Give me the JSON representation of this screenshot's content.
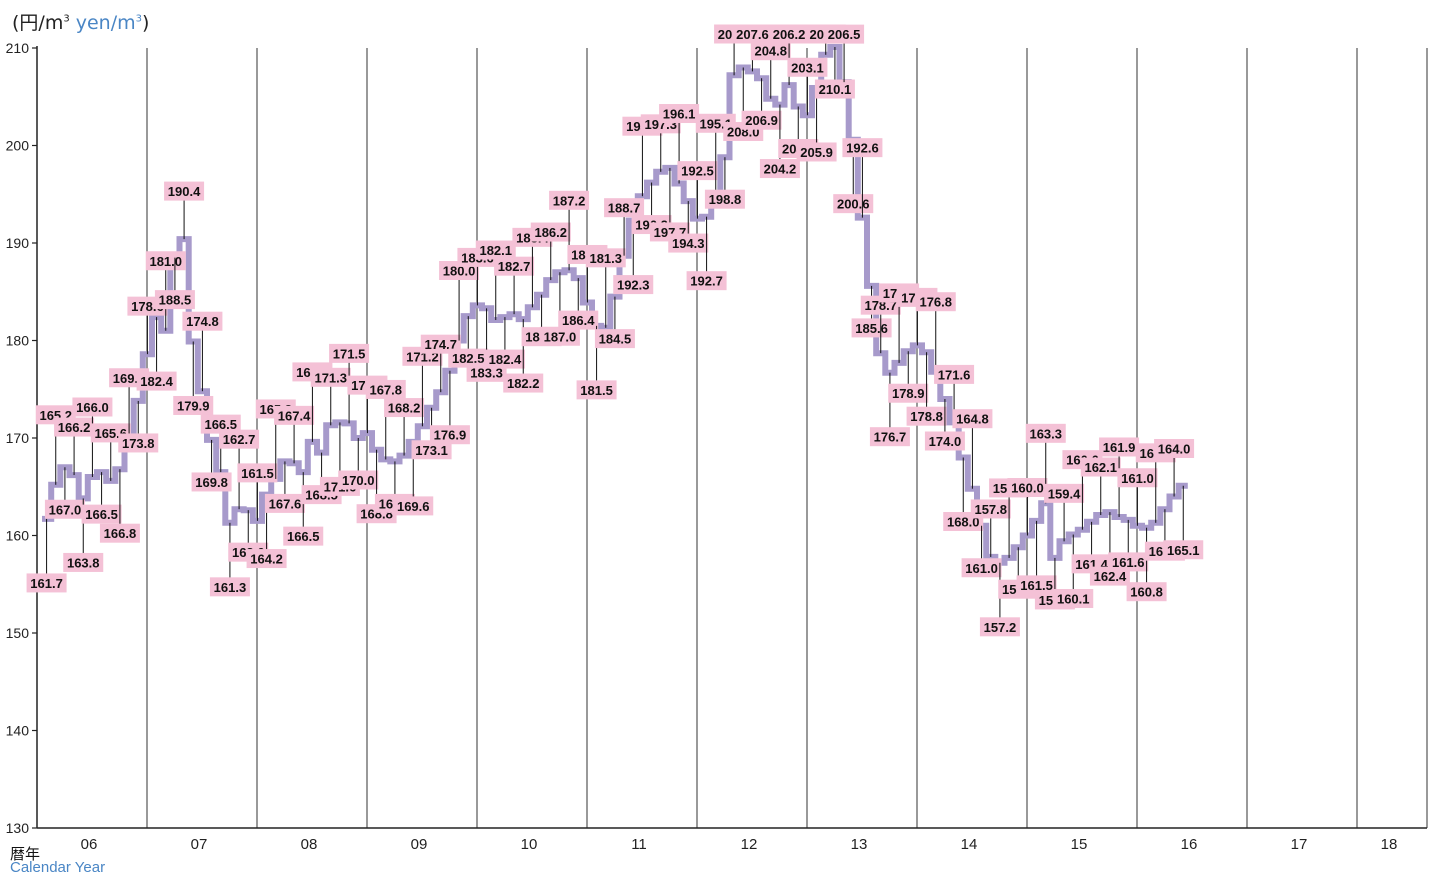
{
  "chart_data": {
    "type": "line",
    "step": true,
    "unit_label": "(円/m",
    "unit_label_en": "yen/m",
    "unit_close": ")",
    "xlabel_ja": "暦年",
    "xlabel_en": "Calendar Year",
    "ylim": [
      130,
      210
    ],
    "yticks": [
      130,
      140,
      150,
      160,
      170,
      180,
      190,
      200,
      210
    ],
    "years": [
      "06",
      "07",
      "08",
      "09",
      "10",
      "11",
      "12",
      "13",
      "14",
      "15",
      "16",
      "17",
      "18"
    ],
    "grid": "vertical lines at year boundaries",
    "colors": {
      "line": "#a79acb",
      "label_bg": "#f4c1d6",
      "axis": "#222222",
      "unit_en": "#4a86c5"
    },
    "values": [
      161.7,
      165.2,
      167.0,
      166.2,
      163.8,
      166.0,
      166.5,
      165.6,
      166.8,
      169.0,
      173.8,
      178.6,
      182.4,
      181.0,
      188.5,
      190.4,
      179.9,
      174.8,
      169.8,
      166.5,
      161.3,
      162.7,
      162.6,
      161.5,
      164.2,
      165.8,
      167.6,
      167.4,
      166.5,
      169.6,
      168.5,
      171.3,
      171.6,
      171.5,
      170.0,
      170.5,
      168.8,
      167.8,
      167.6,
      168.2,
      169.6,
      171.2,
      173.1,
      174.7,
      176.9,
      180.0,
      182.5,
      183.6,
      183.3,
      182.1,
      182.4,
      182.7,
      182.2,
      183.4,
      184.7,
      186.2,
      187.0,
      187.2,
      186.4,
      183.9,
      181.5,
      181.3,
      184.5,
      188.7,
      192.3,
      194.8,
      196.2,
      197.3,
      197.7,
      196.1,
      194.3,
      192.5,
      192.7,
      195.1,
      198.8,
      207.2,
      208.0,
      207.6,
      206.9,
      204.8,
      204.2,
      206.2,
      204.0,
      203.1,
      205.9,
      209.3,
      210.1,
      206.5,
      200.6,
      192.6,
      185.6,
      178.7,
      176.7,
      177.7,
      178.9,
      179.5,
      178.8,
      176.8,
      174.0,
      171.6,
      168.0,
      164.8,
      161.0,
      157.8,
      157.2,
      157.7,
      158.8,
      160.0,
      161.5,
      163.3,
      157.7,
      159.4,
      160.1,
      160.6,
      161.4,
      162.1,
      162.4,
      161.9,
      161.6,
      161.0,
      160.8,
      161.3,
      162.7,
      164.0,
      165.1
    ]
  }
}
